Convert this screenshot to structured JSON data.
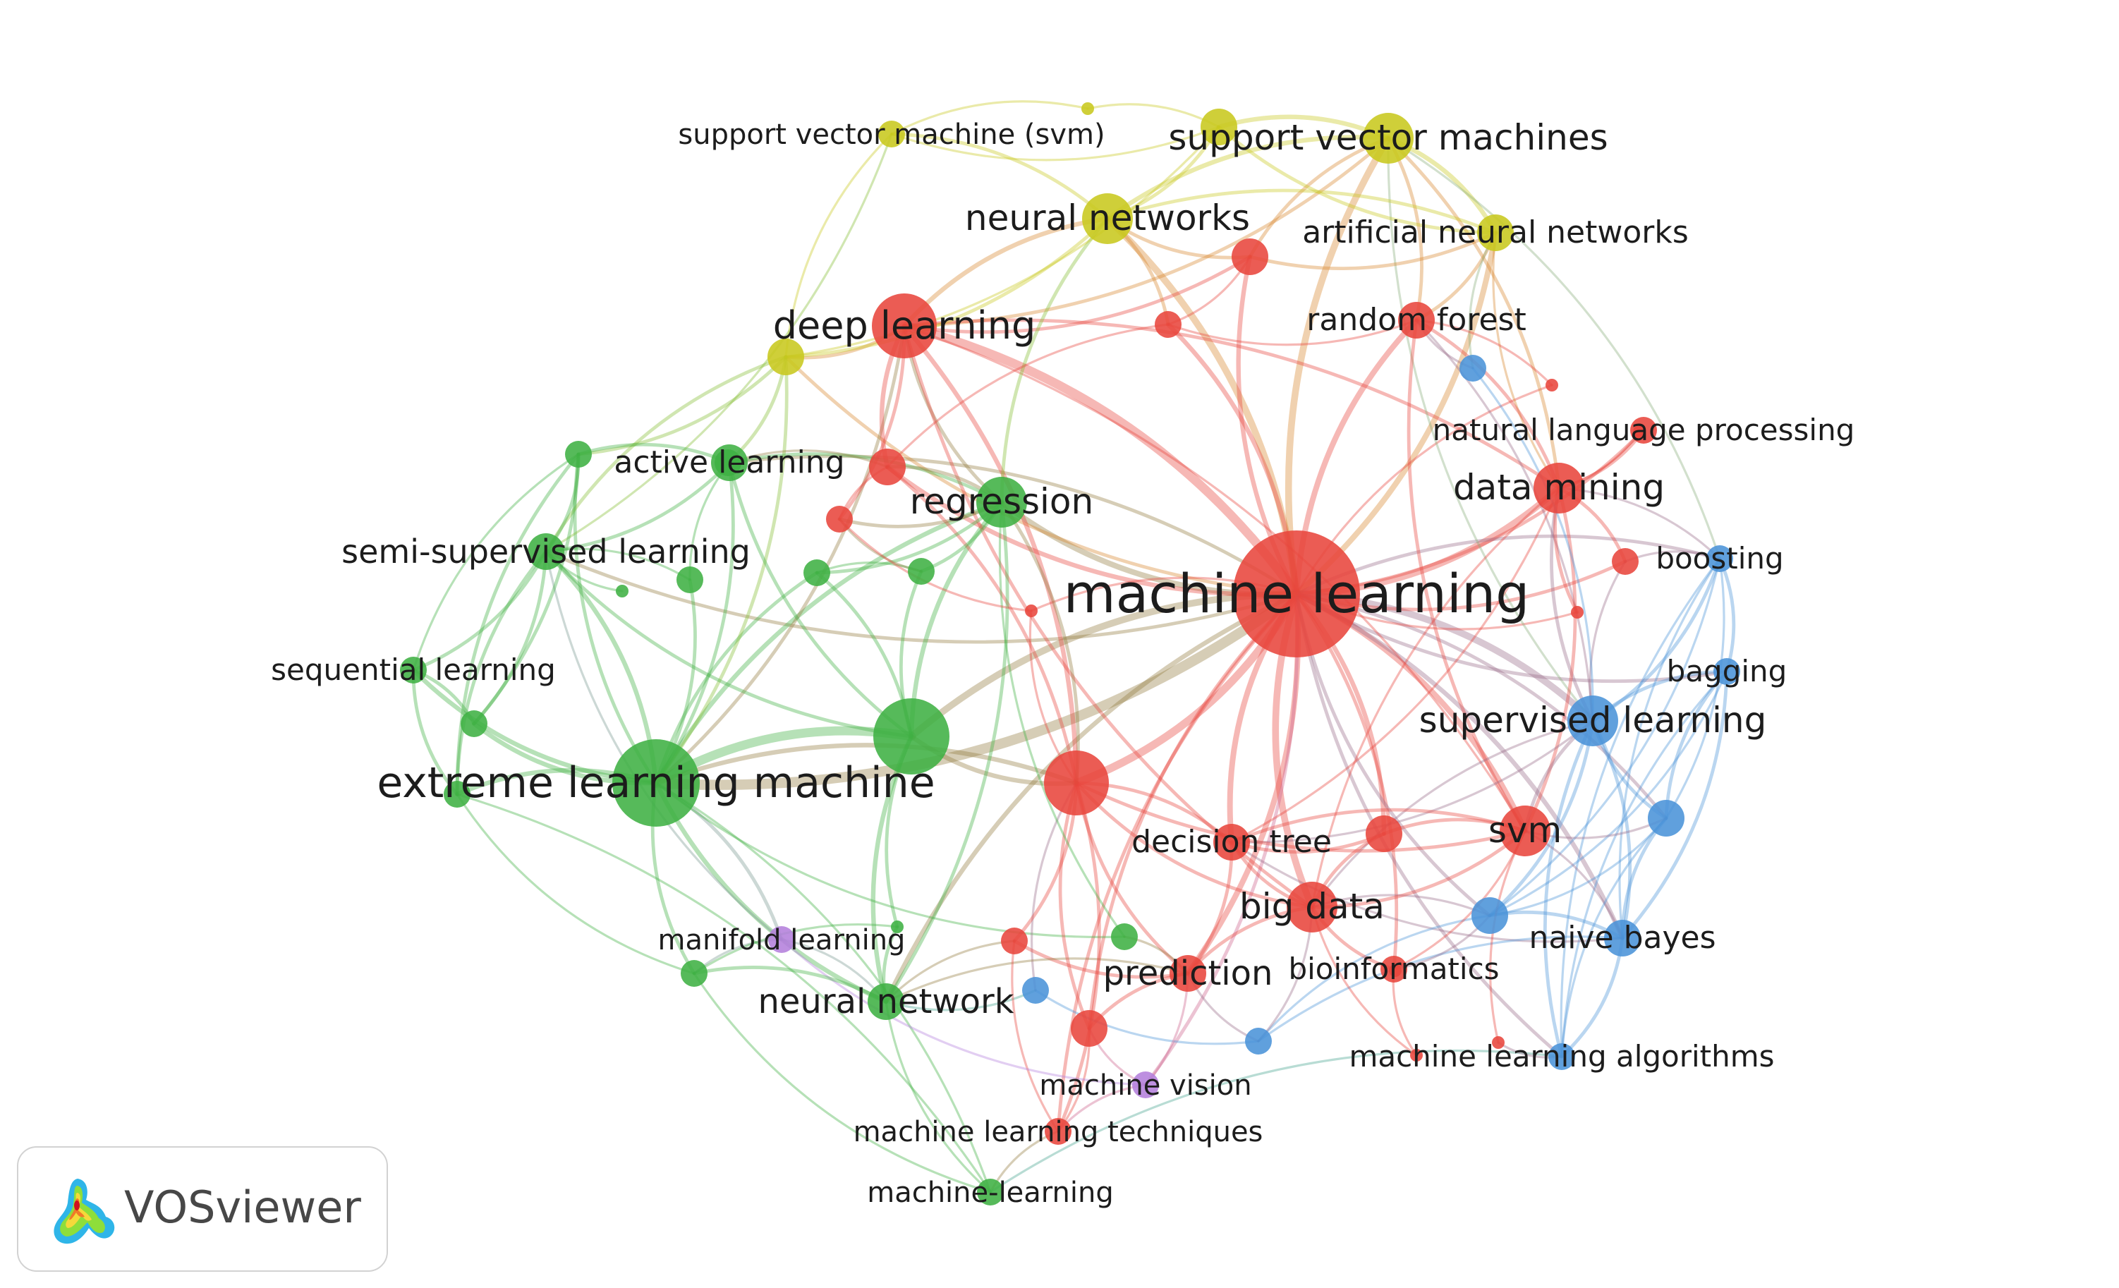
{
  "app": {
    "name": "VOSviewer"
  },
  "clusters": {
    "red": "#e8453c",
    "green": "#3fb043",
    "blue": "#4a93d8",
    "yellow": "#c8c81e",
    "purple": "#b47fdc"
  },
  "nodes": [
    {
      "id": "machine-learning",
      "label": "machine learning",
      "cluster": "red",
      "weight": 10
    },
    {
      "id": "extreme-learning-machine",
      "label": "extreme learning machine",
      "cluster": "green",
      "weight": 7
    },
    {
      "id": "deep-learning",
      "label": "deep learning",
      "cluster": "red",
      "weight": 5
    },
    {
      "id": "support-vector-machines",
      "label": "support vector machines",
      "cluster": "yellow",
      "weight": 4
    },
    {
      "id": "neural-networks",
      "label": "neural networks",
      "cluster": "yellow",
      "weight": 4
    },
    {
      "id": "regression",
      "label": "regression",
      "cluster": "green",
      "weight": 4
    },
    {
      "id": "data-mining",
      "label": "data mining",
      "cluster": "red",
      "weight": 4
    },
    {
      "id": "supervised-learning",
      "label": "supervised learning",
      "cluster": "blue",
      "weight": 4
    },
    {
      "id": "big-data",
      "label": "big data",
      "cluster": "red",
      "weight": 4
    },
    {
      "id": "svm",
      "label": "svm",
      "cluster": "red",
      "weight": 4
    },
    {
      "id": "neural-network",
      "label": "neural network",
      "cluster": "green",
      "weight": 3
    },
    {
      "id": "prediction",
      "label": "prediction",
      "cluster": "red",
      "weight": 3
    },
    {
      "id": "artificial-neural-networks",
      "label": "artificial neural networks",
      "cluster": "yellow",
      "weight": 3
    },
    {
      "id": "random-forest",
      "label": "random forest",
      "cluster": "red",
      "weight": 3
    },
    {
      "id": "active-learning",
      "label": "active learning",
      "cluster": "green",
      "weight": 3
    },
    {
      "id": "semi-supervised-learning",
      "label": "semi-supervised learning",
      "cluster": "green",
      "weight": 3
    },
    {
      "id": "sequential-learning",
      "label": "sequential learning",
      "cluster": "green",
      "weight": 2
    },
    {
      "id": "natural-language-processing",
      "label": "natural language processing",
      "cluster": "red",
      "weight": 2
    },
    {
      "id": "boosting",
      "label": "boosting",
      "cluster": "blue",
      "weight": 2
    },
    {
      "id": "bagging",
      "label": "bagging",
      "cluster": "blue",
      "weight": 2
    },
    {
      "id": "naive-bayes",
      "label": "naive bayes",
      "cluster": "blue",
      "weight": 3
    },
    {
      "id": "decision-tree",
      "label": "decision tree",
      "cluster": "red",
      "weight": 3
    },
    {
      "id": "bioinformatics",
      "label": "bioinformatics",
      "cluster": "red",
      "weight": 2
    },
    {
      "id": "machine-learning-algorithms",
      "label": "machine learning algorithms",
      "cluster": "blue",
      "weight": 2
    },
    {
      "id": "manifold-learning",
      "label": "manifold learning",
      "cluster": "purple",
      "weight": 2
    },
    {
      "id": "machine-vision",
      "label": "machine vision",
      "cluster": "purple",
      "weight": 2
    },
    {
      "id": "machine-learning-techniques",
      "label": "machine learning techniques",
      "cluster": "red",
      "weight": 2
    },
    {
      "id": "machine-learning-hyphen",
      "label": "machine-learning",
      "cluster": "green",
      "weight": 2
    },
    {
      "id": "support-vector-machine-svm",
      "label": "support vector machine (svm)",
      "cluster": "yellow",
      "weight": 2
    },
    {
      "id": "u-yellow-top",
      "label": "",
      "cluster": "yellow",
      "weight": 1
    },
    {
      "id": "u-yellow-svm2",
      "label": "",
      "cluster": "yellow",
      "weight": 3
    },
    {
      "id": "u-yellow-left",
      "label": "",
      "cluster": "yellow",
      "weight": 3
    },
    {
      "id": "u-red-ann1",
      "label": "",
      "cluster": "red",
      "weight": 3
    },
    {
      "id": "u-red-top",
      "label": "",
      "cluster": "red",
      "weight": 2
    },
    {
      "id": "u-red-rf2",
      "label": "",
      "cluster": "red",
      "weight": 1
    },
    {
      "id": "u-red-nlp",
      "label": "",
      "cluster": "red",
      "weight": 1
    },
    {
      "id": "u-red-act",
      "label": "",
      "cluster": "red",
      "weight": 3
    },
    {
      "id": "u-red-reg",
      "label": "",
      "cluster": "red",
      "weight": 2
    },
    {
      "id": "u-red-mid",
      "label": "",
      "cluster": "red",
      "weight": 1
    },
    {
      "id": "u-red-boost",
      "label": "",
      "cluster": "red",
      "weight": 2
    },
    {
      "id": "u-red-dm2",
      "label": "",
      "cluster": "red",
      "weight": 1
    },
    {
      "id": "u-red-big",
      "label": "",
      "cluster": "red",
      "weight": 5
    },
    {
      "id": "u-red-dt2",
      "label": "",
      "cluster": "red",
      "weight": 3
    },
    {
      "id": "u-red-pred1",
      "label": "",
      "cluster": "red",
      "weight": 2
    },
    {
      "id": "u-red-pred2",
      "label": "",
      "cluster": "red",
      "weight": 3
    },
    {
      "id": "u-red-bio",
      "label": "",
      "cluster": "red",
      "weight": 1
    },
    {
      "id": "u-red-mla",
      "label": "",
      "cluster": "red",
      "weight": 1
    },
    {
      "id": "u-red-mla2",
      "label": "",
      "cluster": "red",
      "weight": 1
    },
    {
      "id": "u-green-big",
      "label": "",
      "cluster": "green",
      "weight": 6
    },
    {
      "id": "u-green-ssl1",
      "label": "",
      "cluster": "green",
      "weight": 2
    },
    {
      "id": "u-green-ssl2",
      "label": "",
      "cluster": "green",
      "weight": 1
    },
    {
      "id": "u-green-ssl3",
      "label": "",
      "cluster": "green",
      "weight": 2
    },
    {
      "id": "u-green-mid1",
      "label": "",
      "cluster": "green",
      "weight": 2
    },
    {
      "id": "u-green-mid2",
      "label": "",
      "cluster": "green",
      "weight": 2
    },
    {
      "id": "u-green-seq",
      "label": "",
      "cluster": "green",
      "weight": 2
    },
    {
      "id": "u-green-elm",
      "label": "",
      "cluster": "green",
      "weight": 2
    },
    {
      "id": "u-green-act",
      "label": "",
      "cluster": "green",
      "weight": 2
    },
    {
      "id": "u-green-man",
      "label": "",
      "cluster": "green",
      "weight": 2
    },
    {
      "id": "u-green-man2",
      "label": "",
      "cluster": "green",
      "weight": 1
    },
    {
      "id": "u-green-pred",
      "label": "",
      "cluster": "green",
      "weight": 2
    },
    {
      "id": "u-blue-rf",
      "label": "",
      "cluster": "blue",
      "weight": 2
    },
    {
      "id": "u-blue-sl",
      "label": "",
      "cluster": "blue",
      "weight": 3
    },
    {
      "id": "u-blue-big",
      "label": "",
      "cluster": "blue",
      "weight": 3
    },
    {
      "id": "u-blue-nn",
      "label": "",
      "cluster": "blue",
      "weight": 2
    },
    {
      "id": "u-blue-bio",
      "label": "",
      "cluster": "blue",
      "weight": 2
    }
  ]
}
